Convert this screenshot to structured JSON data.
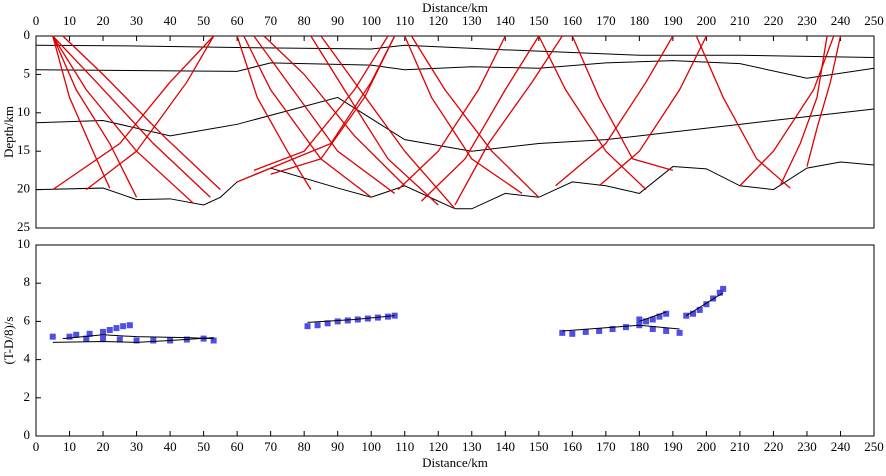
{
  "chart_data": [
    {
      "type": "line",
      "xlabel": "Distance/km",
      "ylabel": "Depth/km",
      "xlim": [
        0,
        250
      ],
      "ylim": [
        0,
        25
      ],
      "invert_y": true,
      "xticks": [
        0,
        10,
        20,
        30,
        40,
        50,
        60,
        70,
        80,
        90,
        100,
        110,
        120,
        130,
        140,
        150,
        160,
        170,
        180,
        190,
        200,
        210,
        220,
        230,
        240,
        250
      ],
      "yticks": [
        0,
        5,
        10,
        15,
        20,
        25
      ],
      "xtick_side": "top",
      "series": [
        {
          "color": "#000000",
          "x": [
            0,
            30,
            60,
            100,
            110,
            140,
            180,
            210,
            250
          ],
          "values": [
            1.2,
            1.3,
            1.5,
            1.7,
            1.2,
            1.8,
            2.5,
            2.5,
            2.8
          ]
        },
        {
          "color": "#000000",
          "x": [
            0,
            60,
            70,
            100,
            110,
            130,
            150,
            170,
            190,
            210,
            230,
            250
          ],
          "values": [
            4.4,
            4.6,
            3.5,
            3.8,
            4.4,
            4.0,
            4.2,
            3.5,
            3.2,
            3.6,
            5.5,
            4.2
          ]
        },
        {
          "color": "#000000",
          "x": [
            0,
            20,
            40,
            60,
            90,
            110,
            130,
            150,
            170,
            190,
            210,
            230,
            250
          ],
          "values": [
            11.3,
            11.0,
            13.0,
            11.5,
            8.0,
            13.5,
            15.0,
            14.0,
            13.5,
            12.5,
            11.5,
            10.5,
            9.5
          ]
        },
        {
          "color": "#000000",
          "x": [
            0,
            20,
            30,
            40,
            50,
            55,
            60,
            70,
            90,
            100,
            110,
            120,
            125,
            130,
            140,
            150,
            160,
            170,
            180,
            190,
            200,
            210,
            220,
            230,
            240,
            250
          ],
          "values": [
            20,
            19.8,
            21.3,
            21.2,
            22,
            21,
            19,
            17.2,
            19.8,
            21,
            19.5,
            21.5,
            22.5,
            22.5,
            20.5,
            21,
            19,
            19.5,
            20.5,
            17,
            17.3,
            19.5,
            20,
            17.2,
            16.4,
            16.8
          ]
        },
        {
          "color": "#e00000",
          "x": [
            5,
            15,
            30,
            47
          ],
          "values": [
            0,
            7,
            15,
            21.8
          ]
        },
        {
          "color": "#e00000",
          "x": [
            5,
            18,
            35,
            52
          ],
          "values": [
            0,
            6,
            14,
            21
          ]
        },
        {
          "color": "#e00000",
          "x": [
            8,
            20,
            38,
            55
          ],
          "values": [
            0,
            5,
            13,
            20
          ]
        },
        {
          "color": "#e00000",
          "x": [
            5,
            12,
            22,
            30
          ],
          "values": [
            0,
            7,
            14,
            21
          ]
        },
        {
          "color": "#e00000",
          "x": [
            5,
            10,
            17,
            22
          ],
          "values": [
            0,
            8,
            15,
            19.8
          ]
        },
        {
          "color": "#e00000",
          "x": [
            53,
            45,
            30,
            15
          ],
          "values": [
            0,
            6,
            15,
            20
          ]
        },
        {
          "color": "#e00000",
          "x": [
            53,
            40,
            25,
            5
          ],
          "values": [
            0,
            6,
            14,
            20
          ]
        },
        {
          "color": "#e00000",
          "x": [
            62,
            70,
            85,
            100
          ],
          "values": [
            0,
            7,
            16,
            21
          ]
        },
        {
          "color": "#e00000",
          "x": [
            65,
            75,
            90,
            107
          ],
          "values": [
            0,
            6,
            15,
            20.5
          ]
        },
        {
          "color": "#e00000",
          "x": [
            68,
            80,
            95,
            110
          ],
          "values": [
            0,
            5,
            13,
            19.5
          ]
        },
        {
          "color": "#e00000",
          "x": [
            60,
            66,
            75,
            82
          ],
          "values": [
            0,
            8,
            15,
            20
          ]
        },
        {
          "color": "#e00000",
          "x": [
            82,
            92,
            105,
            120
          ],
          "values": [
            0,
            7,
            16,
            22
          ]
        },
        {
          "color": "#e00000",
          "x": [
            85,
            95,
            110,
            125
          ],
          "values": [
            0,
            6,
            15,
            22.5
          ]
        },
        {
          "color": "#e00000",
          "x": [
            107,
            98,
            85,
            70
          ],
          "values": [
            0,
            8,
            16,
            18
          ]
        },
        {
          "color": "#e00000",
          "x": [
            107,
            100,
            88,
            60
          ],
          "values": [
            0,
            6,
            14,
            19
          ]
        },
        {
          "color": "#e00000",
          "x": [
            105,
            95,
            80,
            65
          ],
          "values": [
            0,
            7,
            15,
            17.5
          ]
        },
        {
          "color": "#e00000",
          "x": [
            110,
            118,
            130,
            145
          ],
          "values": [
            0,
            8,
            16,
            20.5
          ]
        },
        {
          "color": "#e00000",
          "x": [
            112,
            122,
            136,
            150
          ],
          "values": [
            0,
            7,
            15,
            21
          ]
        },
        {
          "color": "#e00000",
          "x": [
            140,
            132,
            120,
            108
          ],
          "values": [
            0,
            7,
            15,
            20
          ]
        },
        {
          "color": "#e00000",
          "x": [
            150,
            140,
            128,
            115
          ],
          "values": [
            0,
            7,
            16,
            21.5
          ]
        },
        {
          "color": "#e00000",
          "x": [
            150,
            158,
            170,
            182
          ],
          "values": [
            0,
            7,
            15,
            20
          ]
        },
        {
          "color": "#e00000",
          "x": [
            157,
            148,
            135,
            125
          ],
          "values": [
            0,
            6,
            14,
            22
          ]
        },
        {
          "color": "#e00000",
          "x": [
            160,
            168,
            178,
            190
          ],
          "values": [
            0,
            8,
            16,
            17.5
          ]
        },
        {
          "color": "#e00000",
          "x": [
            190,
            182,
            170,
            155
          ],
          "values": [
            0,
            6,
            14,
            19.5
          ]
        },
        {
          "color": "#e00000",
          "x": [
            200,
            192,
            180,
            168
          ],
          "values": [
            0,
            7,
            15,
            19.5
          ]
        },
        {
          "color": "#e00000",
          "x": [
            197,
            205,
            215,
            225
          ],
          "values": [
            0,
            8,
            16,
            19.8
          ]
        },
        {
          "color": "#e00000",
          "x": [
            238,
            232,
            220,
            210
          ],
          "values": [
            0,
            7,
            15,
            19.5
          ]
        },
        {
          "color": "#e00000",
          "x": [
            236,
            233,
            228,
            222
          ],
          "values": [
            0,
            8,
            14,
            19.5
          ]
        },
        {
          "color": "#e00000",
          "x": [
            240,
            237,
            233,
            230
          ],
          "values": [
            0,
            6,
            12,
            17
          ]
        }
      ]
    },
    {
      "type": "scatter",
      "xlabel": "Distance/km",
      "ylabel": "(T-D/8)/s",
      "xlim": [
        0,
        250
      ],
      "ylim": [
        0,
        10
      ],
      "xticks": [
        0,
        10,
        20,
        30,
        40,
        50,
        60,
        70,
        80,
        90,
        100,
        110,
        120,
        130,
        140,
        150,
        160,
        170,
        180,
        190,
        200,
        210,
        220,
        230,
        240,
        250
      ],
      "yticks": [
        0,
        2,
        4,
        6,
        8,
        10
      ],
      "xtick_side": "bottom",
      "series": [
        {
          "style": "markers",
          "color": "#3030e0",
          "x": [
            5,
            10,
            15,
            20,
            25,
            30,
            35,
            40,
            45,
            50,
            53
          ],
          "values": [
            5.2,
            5.2,
            5.1,
            5.1,
            5.05,
            5.0,
            5.0,
            5.0,
            5.05,
            5.1,
            5.0
          ]
        },
        {
          "style": "markers",
          "color": "#3030e0",
          "x": [
            12,
            16,
            20,
            22,
            24,
            26,
            28
          ],
          "values": [
            5.3,
            5.35,
            5.45,
            5.55,
            5.65,
            5.75,
            5.8
          ]
        },
        {
          "style": "markers",
          "color": "#3030e0",
          "x": [
            81,
            84,
            87,
            90,
            93,
            96,
            99,
            102,
            105,
            107
          ],
          "values": [
            5.75,
            5.8,
            5.9,
            6.0,
            6.05,
            6.1,
            6.15,
            6.2,
            6.25,
            6.3
          ]
        },
        {
          "style": "markers",
          "color": "#3030e0",
          "x": [
            157,
            160,
            164,
            168,
            172,
            176,
            180,
            184,
            188,
            192
          ],
          "values": [
            5.4,
            5.35,
            5.45,
            5.5,
            5.6,
            5.7,
            5.8,
            5.6,
            5.5,
            5.4
          ]
        },
        {
          "style": "markers",
          "color": "#3030e0",
          "x": [
            180,
            182,
            184,
            186,
            188
          ],
          "values": [
            6.1,
            6.0,
            6.1,
            6.25,
            6.4
          ]
        },
        {
          "style": "markers",
          "color": "#3030e0",
          "x": [
            194,
            196,
            198,
            200,
            202,
            204,
            205
          ],
          "values": [
            6.3,
            6.4,
            6.6,
            6.9,
            7.2,
            7.5,
            7.7
          ]
        },
        {
          "style": "line",
          "color": "#000000",
          "x": [
            5,
            20,
            30,
            40,
            53
          ],
          "values": [
            4.9,
            4.95,
            4.9,
            5.0,
            5.15
          ]
        },
        {
          "style": "line",
          "color": "#000000",
          "x": [
            8,
            20,
            30,
            45,
            53
          ],
          "values": [
            5.1,
            5.3,
            5.2,
            5.15,
            5.1
          ]
        },
        {
          "style": "line",
          "color": "#000000",
          "x": [
            81,
            95,
            107
          ],
          "values": [
            5.95,
            6.1,
            6.3
          ]
        },
        {
          "style": "line",
          "color": "#000000",
          "x": [
            157,
            180,
            192
          ],
          "values": [
            5.5,
            5.8,
            5.6
          ]
        },
        {
          "style": "line",
          "color": "#000000",
          "x": [
            180,
            188
          ],
          "values": [
            6.0,
            6.5
          ]
        },
        {
          "style": "line",
          "color": "#000000",
          "x": [
            194,
            205
          ],
          "values": [
            6.3,
            7.5
          ]
        }
      ]
    }
  ]
}
